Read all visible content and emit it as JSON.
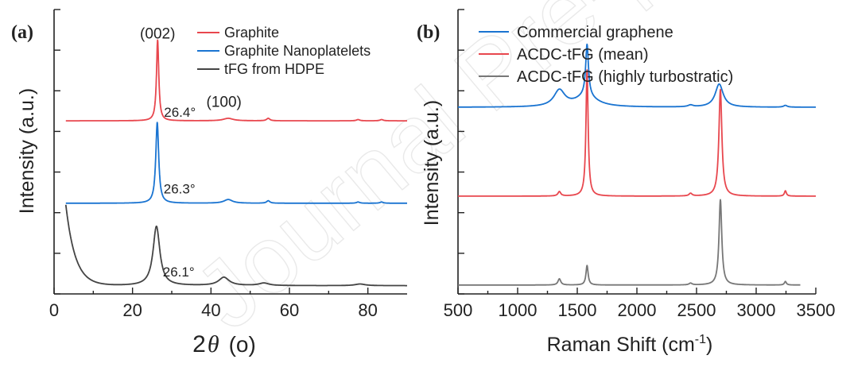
{
  "watermark": "Journal Pre-proof",
  "chart_data": [
    {
      "panel": "(a)",
      "type": "line",
      "xlabel_prefix": "2",
      "xlabel_symbol": "θ",
      "xlabel_unit": "(o)",
      "ylabel": "Intensity (a.u.)",
      "xlim": [
        0,
        90
      ],
      "xticks": [
        0,
        20,
        40,
        60,
        80
      ],
      "xtick_labels": [
        "0",
        "20",
        "40",
        "60",
        "80"
      ],
      "yticks_labeled": false,
      "legend_position": "top-right",
      "series": [
        {
          "name": "Graphite",
          "color": "#e8474e",
          "baseline": 2.0,
          "x_range": [
            3,
            90
          ],
          "peaks": [
            [
              26.4,
              0.98,
              0.35
            ],
            [
              44.4,
              0.03,
              1.5
            ],
            [
              54.6,
              0.03,
              0.5
            ],
            [
              77.5,
              0.015,
              0.5
            ],
            [
              83.5,
              0.015,
              0.5
            ]
          ]
        },
        {
          "name": "Graphite Nanoplatelets",
          "color": "#1a74d1",
          "baseline": 1.0,
          "x_range": [
            3,
            90
          ],
          "peaks": [
            [
              26.3,
              0.98,
              0.45
            ],
            [
              44.4,
              0.045,
              1.3
            ],
            [
              54.6,
              0.03,
              0.5
            ],
            [
              77.5,
              0.015,
              0.5
            ],
            [
              83.5,
              0.015,
              0.5
            ]
          ]
        },
        {
          "name": "tFG from HDPE",
          "color": "#444444",
          "baseline": 0.0,
          "x_range": [
            3,
            90
          ],
          "decay": [
            0.98,
            2.4
          ],
          "peaks": [
            [
              26.1,
              0.72,
              1.05
            ],
            [
              43.3,
              0.1,
              1.6
            ],
            [
              53.5,
              0.03,
              1.5
            ],
            [
              78.0,
              0.02,
              1.5
            ]
          ]
        }
      ],
      "annotations": [
        {
          "text": "(002)",
          "x": 26.4,
          "y": 3.0
        },
        {
          "text": "26.4°",
          "x": 26.4,
          "y": 2.05
        },
        {
          "text": "(100)",
          "x": 44.5,
          "y": 2.17
        },
        {
          "text": "26.3°",
          "x": 26.3,
          "y": 1.12
        },
        {
          "text": "26.1°",
          "x": 26.1,
          "y": 0.11
        }
      ]
    },
    {
      "panel": "(b)",
      "type": "line",
      "xlabel": "Raman Shift (cm",
      "xlabel_sup": "-1",
      "xlabel_end": ")",
      "ylabel": "Intensity (a.u.)",
      "xlim": [
        500,
        3500
      ],
      "xticks": [
        500,
        1000,
        1500,
        2000,
        2500,
        3000,
        3500
      ],
      "xtick_labels": [
        "500",
        "1000",
        "1500",
        "2000",
        "2500",
        "3000",
        "3500"
      ],
      "yticks_labeled": false,
      "legend_position": "top-left",
      "series": [
        {
          "name": "Commercial graphene",
          "color": "#1a74d1",
          "baseline": 2.0,
          "x_range": [
            500,
            3500
          ],
          "peaks": [
            [
              1350,
              0.18,
              55
            ],
            [
              1582,
              0.58,
              14
            ],
            [
              1575,
              0.12,
              110
            ],
            [
              2690,
              0.26,
              40
            ],
            [
              2450,
              0.02,
              25
            ],
            [
              3245,
              0.02,
              18
            ]
          ]
        },
        {
          "name": "ACDC-tFG (mean)",
          "color": "#e8474e",
          "baseline": 1.0,
          "x_range": [
            500,
            3500
          ],
          "peaks": [
            [
              1350,
              0.05,
              14
            ],
            [
              1582,
              1.42,
              11
            ],
            [
              2700,
              1.2,
              15
            ],
            [
              2450,
              0.03,
              15
            ],
            [
              3245,
              0.06,
              10
            ]
          ]
        },
        {
          "name": "ACDC-tFG (highly turbostratic)",
          "color": "#777777",
          "baseline": 0.0,
          "x_range": [
            500,
            3370
          ],
          "peaks": [
            [
              1350,
              0.07,
              14
            ],
            [
              1582,
              0.22,
              11
            ],
            [
              2700,
              0.96,
              14
            ],
            [
              2450,
              0.02,
              15
            ],
            [
              3245,
              0.04,
              10
            ]
          ]
        }
      ]
    }
  ]
}
